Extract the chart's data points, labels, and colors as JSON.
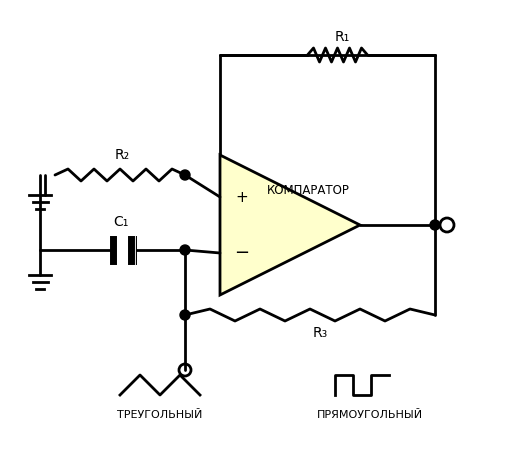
{
  "bg_color": "#ffffff",
  "line_color": "#000000",
  "line_width": 2.0,
  "comp_fill": "#ffffcc",
  "fig_width": 5.14,
  "fig_height": 4.54,
  "title": "",
  "labels": {
    "R1": "R₁",
    "R2": "R₂",
    "R3": "R₃",
    "C1": "C₁",
    "comp": "КОМПАРАТОР",
    "plus": "+",
    "minus": "−",
    "tri_label": "ТРЕУГОЛЬНЫЙ",
    "rect_label": "ПРЯМОУГОЛЬНЫЙ"
  }
}
